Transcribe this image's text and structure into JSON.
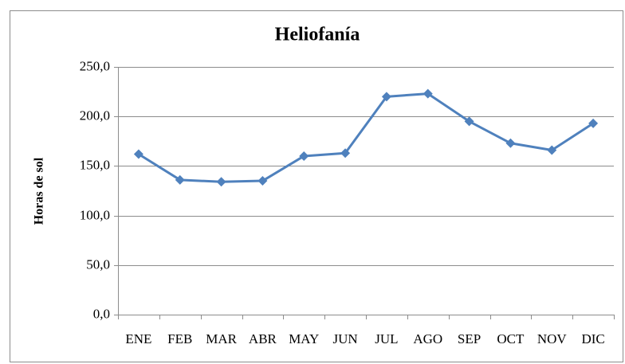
{
  "chart_data": {
    "type": "line",
    "title": "Heliofanía",
    "y_label": "Horas de sol",
    "categories": [
      "ENE",
      "FEB",
      "MAR",
      "ABR",
      "MAY",
      "JUN",
      "JUL",
      "AGO",
      "SEP",
      "OCT",
      "NOV",
      "DIC"
    ],
    "series": [
      {
        "name": "Heliofanía",
        "color": "#4f81bd",
        "values": [
          162,
          136,
          134,
          135,
          160,
          163,
          220,
          223,
          195,
          173,
          166,
          193
        ]
      }
    ],
    "ylim": [
      0,
      250
    ],
    "yticks": [
      {
        "value": 0,
        "label": "0,0"
      },
      {
        "value": 50,
        "label": "50,0"
      },
      {
        "value": 100,
        "label": "100,0"
      },
      {
        "value": 150,
        "label": "150,0"
      },
      {
        "value": 200,
        "label": "200,0"
      },
      {
        "value": 250,
        "label": "250,0"
      }
    ],
    "grid": true
  }
}
